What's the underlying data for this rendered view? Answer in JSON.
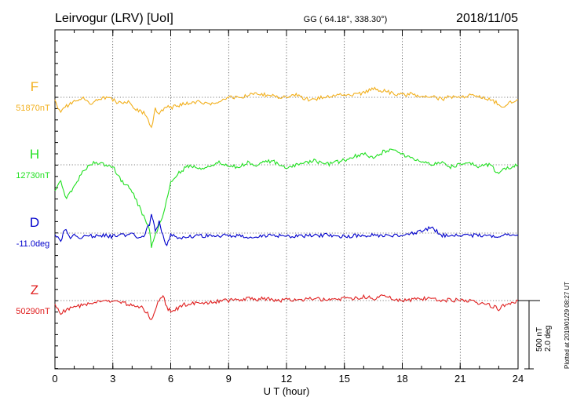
{
  "header": {
    "station": "Leirvogur (LRV)  [UoI]",
    "coords": "GG ( 64.18°, 338.30°)",
    "date": "2018/11/05"
  },
  "side_note": "Plotted at 2019/01/29 08:27 UT",
  "scale_note": {
    "nt": "500 nT",
    "deg": "2.0 deg"
  },
  "chart_data": {
    "type": "line",
    "title": "Leirvogur (LRV)  [UoI]",
    "xlabel": "U T (hour)",
    "ylabel": "",
    "xlim": [
      0,
      24
    ],
    "xticks": [
      "0",
      "3",
      "6",
      "9",
      "12",
      "15",
      "18",
      "21",
      "24"
    ],
    "grid": true,
    "series": [
      {
        "name": "F",
        "baseline_label": "51870nT",
        "color": "#f2b01e",
        "x": [
          0,
          0.3,
          0.6,
          1,
          1.4,
          1.8,
          2.2,
          2.6,
          3,
          3.4,
          3.8,
          4.2,
          4.6,
          4.9,
          5.0,
          5.2,
          5.4,
          5.6,
          5.8,
          6.0,
          6.3,
          6.7,
          7.2,
          8,
          8.5,
          9,
          9.5,
          10,
          10.5,
          11,
          11.5,
          12,
          12.5,
          13,
          13.5,
          14,
          14.5,
          15,
          15.5,
          16,
          16.5,
          17,
          17.5,
          18,
          18.5,
          19,
          19.5,
          20,
          20.5,
          21,
          21.5,
          22,
          22.5,
          23,
          23.3,
          23.6,
          24
        ],
        "values": [
          -10,
          -35,
          -20,
          -10,
          0,
          -15,
          -5,
          -2,
          -5,
          -15,
          -10,
          -30,
          -35,
          -60,
          -70,
          -25,
          -40,
          -30,
          -20,
          -25,
          -20,
          -15,
          -10,
          -15,
          -8,
          0,
          -2,
          5,
          8,
          5,
          0,
          3,
          5,
          -5,
          -3,
          0,
          2,
          8,
          5,
          10,
          20,
          15,
          10,
          5,
          8,
          0,
          5,
          -5,
          2,
          0,
          5,
          0,
          -3,
          -15,
          -25,
          -10,
          -5
        ]
      },
      {
        "name": "H",
        "baseline_label": "12730nT",
        "color": "#22e022",
        "x": [
          0,
          0.3,
          0.6,
          1,
          1.5,
          2,
          2.5,
          3,
          3.5,
          4,
          4.3,
          4.6,
          4.9,
          5.0,
          5.1,
          5.3,
          5.5,
          5.7,
          6,
          6.5,
          7,
          7.5,
          8,
          8.5,
          9,
          9.5,
          10,
          10.5,
          11,
          11.5,
          12,
          12.5,
          13,
          13.5,
          14,
          14.5,
          15,
          15.5,
          16,
          16.5,
          17,
          17.5,
          18,
          18.5,
          19,
          19.5,
          20,
          20.5,
          21,
          21.5,
          22,
          22.5,
          23,
          23.3,
          23.6,
          24
        ],
        "values": [
          -60,
          -40,
          -80,
          -50,
          -10,
          5,
          0,
          -5,
          -40,
          -60,
          -90,
          -120,
          -150,
          -190,
          -180,
          -150,
          -130,
          -100,
          -40,
          -15,
          0,
          -10,
          -5,
          5,
          0,
          -5,
          5,
          0,
          10,
          5,
          -5,
          0,
          5,
          10,
          0,
          5,
          10,
          20,
          25,
          15,
          30,
          35,
          25,
          15,
          10,
          0,
          5,
          -5,
          0,
          5,
          -5,
          0,
          -20,
          -10,
          -5,
          0
        ]
      },
      {
        "name": "D",
        "baseline_label": "-11.0deg",
        "color": "#0000cc",
        "x": [
          0,
          0.3,
          0.5,
          0.8,
          1,
          1.3,
          1.6,
          2,
          2.5,
          3,
          3.5,
          4,
          4.3,
          4.6,
          4.9,
          5.0,
          5.1,
          5.2,
          5.4,
          5.6,
          5.8,
          6.0,
          6.5,
          7,
          8,
          9,
          10,
          11,
          12,
          13,
          14,
          15,
          16,
          17,
          18,
          18.5,
          19,
          19.3,
          19.5,
          20,
          21,
          22,
          23,
          24
        ],
        "values": [
          -5,
          -20,
          10,
          -10,
          -5,
          -10,
          -5,
          -8,
          -5,
          -8,
          -5,
          -3,
          -10,
          -5,
          20,
          45,
          30,
          5,
          25,
          -5,
          -30,
          -5,
          -10,
          -8,
          -5,
          -6,
          -8,
          -5,
          -7,
          -6,
          -5,
          -7,
          -6,
          -5,
          -4,
          0,
          5,
          10,
          15,
          -5,
          -6,
          -5,
          -6,
          -5
        ]
      },
      {
        "name": "Z",
        "baseline_label": "50290nT",
        "color": "#e02020",
        "x": [
          0,
          0.3,
          0.6,
          1,
          1.5,
          2,
          2.5,
          3,
          3.5,
          4,
          4.5,
          4.8,
          5.0,
          5.2,
          5.4,
          5.6,
          5.8,
          6.0,
          6.3,
          6.7,
          7,
          7.5,
          8,
          8.5,
          9,
          9.5,
          10,
          10.5,
          11,
          11.5,
          12,
          12.5,
          13,
          13.5,
          14,
          14.5,
          15,
          15.5,
          16,
          16.5,
          17,
          17.5,
          18,
          18.5,
          19,
          19.5,
          20,
          20.5,
          21,
          21.5,
          22,
          22.5,
          23,
          23.3,
          23.6,
          24
        ],
        "values": [
          -10,
          -30,
          -20,
          -15,
          -10,
          -2,
          0,
          0,
          -5,
          -10,
          -15,
          -30,
          -45,
          -20,
          0,
          10,
          -15,
          -25,
          -20,
          -10,
          -8,
          -5,
          -5,
          -2,
          0,
          2,
          5,
          3,
          5,
          0,
          2,
          0,
          3,
          5,
          2,
          3,
          5,
          5,
          8,
          5,
          10,
          5,
          0,
          2,
          5,
          3,
          0,
          2,
          0,
          0,
          -5,
          -10,
          -20,
          -10,
          -5,
          0
        ]
      }
    ]
  }
}
